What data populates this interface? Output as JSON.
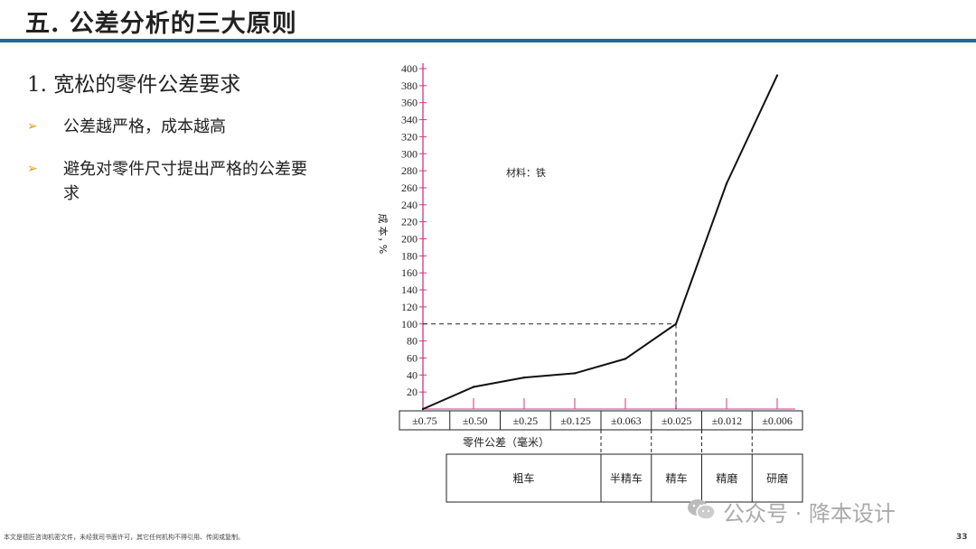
{
  "slide": {
    "title": "五. 公差分析的三大原则",
    "heading": "1. 宽松的零件公差要求",
    "bullets": [
      "公差越严格，成本越高",
      "避免对零件尺寸提出严格的公差要求"
    ],
    "bullet_marker": "➢",
    "footer": "本文是德匠咨询机密文件，未经我司书面许可，其它任何机构不得引用、传阅或复制。",
    "page_number": "33",
    "watermark": "公众号 · 降本设计"
  },
  "chart_data": {
    "type": "line",
    "annotation": "材料：铁",
    "ylabel": "成本，%",
    "xlabel": "零件公差（毫米）",
    "ylim": [
      0,
      400
    ],
    "yticks": [
      20,
      40,
      60,
      80,
      100,
      120,
      140,
      160,
      180,
      200,
      220,
      240,
      260,
      280,
      300,
      320,
      340,
      360,
      380,
      400
    ],
    "categories": [
      "±0.75",
      "±0.50",
      "±0.25",
      "±0.125",
      "±0.063",
      "±0.025",
      "±0.012",
      "±0.006"
    ],
    "series": [
      {
        "values": [
          0,
          26,
          37,
          42,
          59,
          100,
          265,
          392
        ]
      }
    ],
    "reference": {
      "category": "±0.025",
      "value": 100
    },
    "processes": [
      {
        "label": "粗车",
        "from": 0,
        "to": 3
      },
      {
        "label": "半精车",
        "from": 4,
        "to": 4
      },
      {
        "label": "精车",
        "from": 5,
        "to": 5
      },
      {
        "label": "精磨",
        "from": 6,
        "to": 6
      },
      {
        "label": "研磨",
        "from": 7,
        "to": 7
      }
    ],
    "colors": {
      "axis": "#d63384",
      "line": "#111111"
    }
  }
}
